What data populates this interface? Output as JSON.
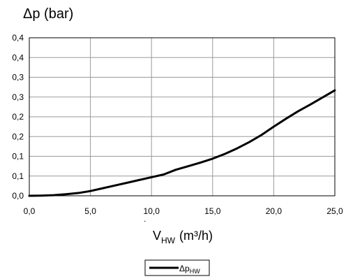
{
  "chart_data": {
    "type": "line",
    "title": "",
    "ylabel": "Δp (bar)",
    "xlabel": {
      "prefix": "V",
      "subscript": "HW",
      "unit": "(m³/h)"
    },
    "xlim": [
      0,
      25
    ],
    "ylim": [
      0,
      0.4
    ],
    "x_ticks": [
      0,
      5,
      10,
      15,
      20,
      25
    ],
    "x_tick_labels": [
      "0,0",
      "5,0",
      "10,0",
      "15,0",
      "20,0",
      "25,0"
    ],
    "y_ticks": [
      0,
      0.05,
      0.1,
      0.15,
      0.2,
      0.25,
      0.3,
      0.35,
      0.4
    ],
    "y_tick_labels": [
      "0,0",
      "0,1",
      "0,1",
      "0,2",
      "0,2",
      "0,3",
      "0,3",
      "0,4",
      "0,4"
    ],
    "grid": true,
    "legend_position": "bottom-center",
    "series": [
      {
        "name": "Δp",
        "name_subscript": "HW",
        "color": "#000000",
        "x": [
          0,
          1,
          2,
          3,
          4,
          5,
          6,
          7,
          8,
          9,
          10,
          11,
          12,
          13,
          14,
          15,
          16,
          17,
          18,
          19,
          20,
          21,
          22,
          23,
          24,
          25
        ],
        "y": [
          0,
          0.0005,
          0.0015,
          0.004,
          0.007,
          0.012,
          0.019,
          0.026,
          0.033,
          0.04,
          0.047,
          0.054,
          0.066,
          0.075,
          0.084,
          0.094,
          0.106,
          0.12,
          0.136,
          0.154,
          0.175,
          0.195,
          0.214,
          0.231,
          0.249,
          0.267
        ]
      }
    ]
  }
}
